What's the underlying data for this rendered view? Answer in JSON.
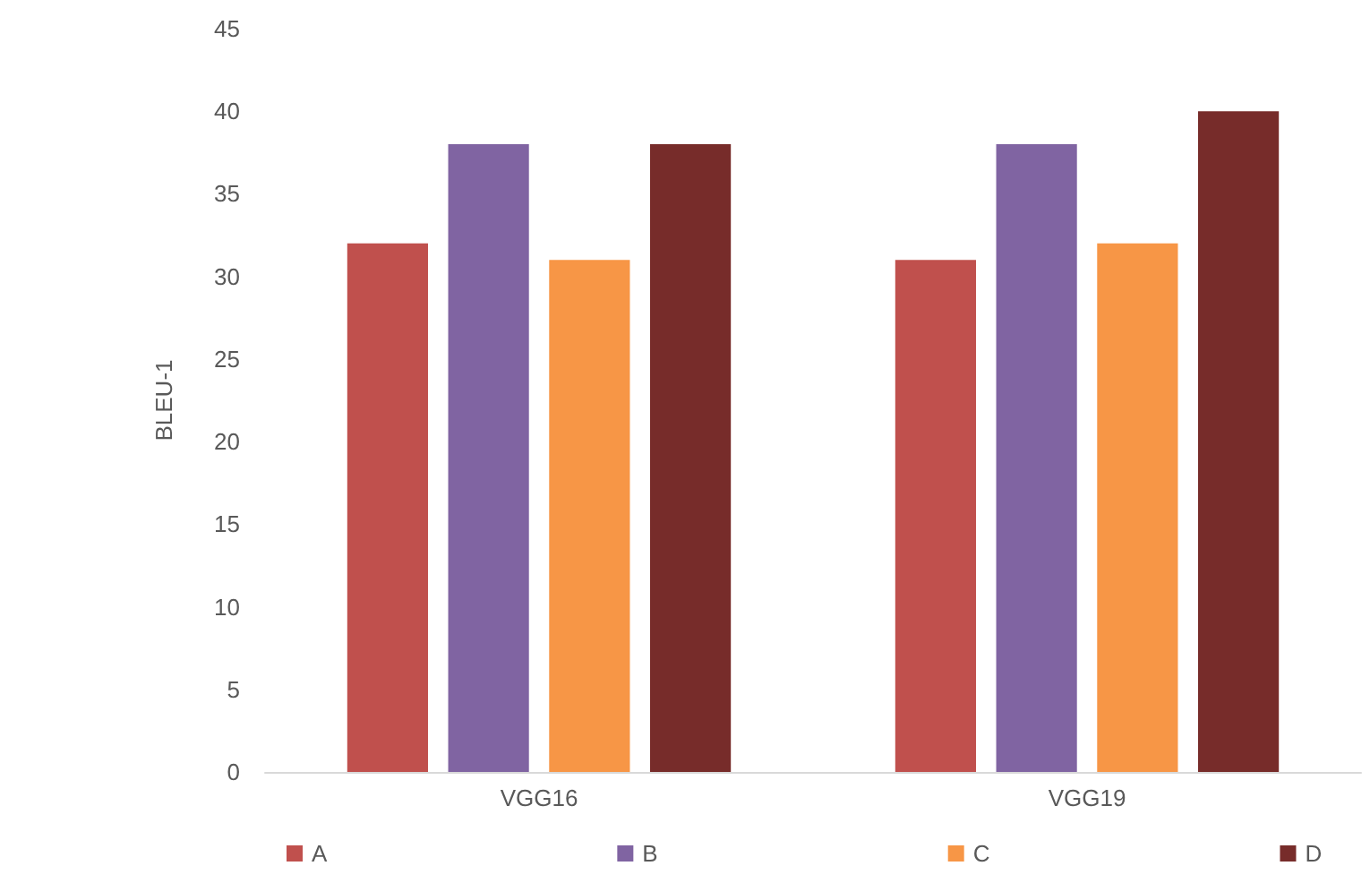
{
  "chart_data": {
    "type": "bar",
    "ylabel": "BLEU-1",
    "categories": [
      "VGG16",
      "VGG19"
    ],
    "series": [
      {
        "name": "A",
        "color": "#c0504d",
        "values": [
          32,
          31
        ]
      },
      {
        "name": "B",
        "color": "#8064a2",
        "values": [
          38,
          38
        ]
      },
      {
        "name": "C",
        "color": "#f79646",
        "values": [
          31,
          32
        ]
      },
      {
        "name": "D",
        "color": "#772c2a",
        "values": [
          38,
          40
        ]
      }
    ],
    "ylim": [
      0,
      45
    ],
    "yticks": [
      0,
      5,
      10,
      15,
      20,
      25,
      30,
      35,
      40,
      45
    ],
    "grid": false,
    "legend": "bottom"
  }
}
